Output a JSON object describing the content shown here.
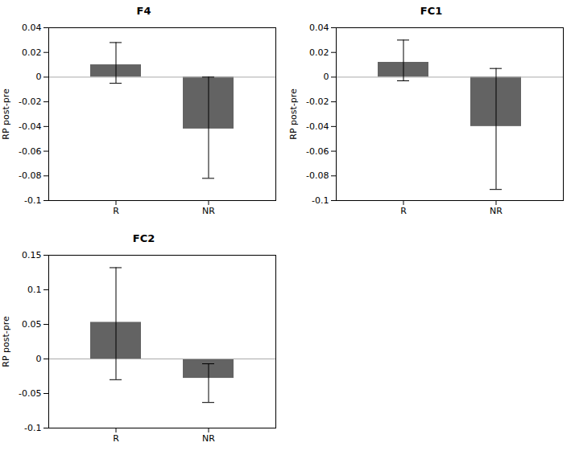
{
  "chart_data": [
    {
      "type": "bar",
      "title": "F4",
      "categories": [
        "R",
        "NR"
      ],
      "values": [
        0.01,
        -0.042
      ],
      "err_low": [
        -0.005,
        -0.082
      ],
      "err_high": [
        0.028,
        0.0
      ],
      "ylim": [
        -0.1,
        0.04
      ],
      "yticks": [
        -0.1,
        -0.08,
        -0.06,
        -0.04,
        -0.02,
        0,
        0.02,
        0.04
      ],
      "ylabel": "RP post-pre",
      "color": "#636363",
      "grid": false
    },
    {
      "type": "bar",
      "title": "FC1",
      "categories": [
        "R",
        "NR"
      ],
      "values": [
        0.012,
        -0.04
      ],
      "err_low": [
        -0.003,
        -0.091
      ],
      "err_high": [
        0.03,
        0.007
      ],
      "ylim": [
        -0.1,
        0.04
      ],
      "yticks": [
        -0.1,
        -0.08,
        -0.06,
        -0.04,
        -0.02,
        0,
        0.02,
        0.04
      ],
      "ylabel": "RP post-pre",
      "color": "#636363",
      "grid": false
    },
    {
      "type": "bar",
      "title": "FC2",
      "categories": [
        "R",
        "NR"
      ],
      "values": [
        0.053,
        -0.028
      ],
      "err_low": [
        -0.03,
        -0.063
      ],
      "err_high": [
        0.132,
        -0.007
      ],
      "ylim": [
        -0.1,
        0.15
      ],
      "yticks": [
        -0.1,
        -0.05,
        0,
        0.05,
        0.1,
        0.15
      ],
      "ylabel": "RP post-pre",
      "color": "#636363",
      "grid": false
    }
  ]
}
